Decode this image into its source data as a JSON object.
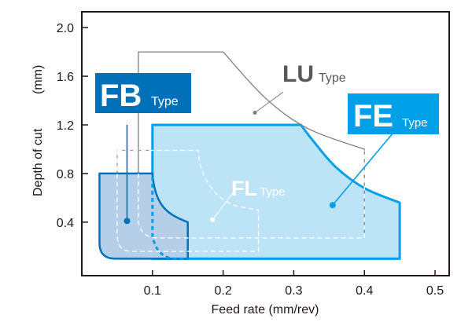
{
  "chart_data": {
    "type": "area",
    "title": "",
    "xlabel": "Feed rate (mm/rev)",
    "ylabel": "Depth of cut",
    "ylabel_unit": "(mm)",
    "xlim": [
      0,
      0.52
    ],
    "ylim": [
      -0.04,
      2.13
    ],
    "grid": false,
    "x_ticks": [
      0.1,
      0.2,
      0.3,
      0.4,
      0.5
    ],
    "x_tick_labels": [
      "0.1",
      "0.2",
      "0.3",
      "0.4",
      "0.5"
    ],
    "y_ticks": [
      0.4,
      0.8,
      1.2,
      1.6,
      2.0
    ],
    "y_tick_labels": [
      "0.4",
      "0.8",
      "1.2",
      "1.6",
      "2.0"
    ],
    "series": [
      {
        "name": "LU",
        "suffix": "Type",
        "style": "gray-outline",
        "color": "#808080",
        "boundary": [
          [
            0.05,
            0.8
          ],
          [
            0.05,
            0.99
          ],
          [
            0.08,
            0.99
          ],
          [
            0.08,
            1.8
          ],
          [
            0.2,
            1.8
          ],
          [
            0.26,
            1.42
          ],
          [
            0.32,
            1.17
          ],
          [
            0.4,
            1.0
          ],
          [
            0.4,
            0.3
          ]
        ],
        "marker": [
          0.245,
          1.3
        ]
      },
      {
        "name": "FE",
        "suffix": "Type",
        "style": "filled",
        "color": "#00a0e9",
        "fill": "#bde3f7",
        "boundary": [
          [
            0.1,
            0.1
          ],
          [
            0.1,
            1.2
          ],
          [
            0.31,
            1.2
          ],
          [
            0.33,
            1.05
          ],
          [
            0.36,
            0.85
          ],
          [
            0.4,
            0.68
          ],
          [
            0.45,
            0.56
          ],
          [
            0.45,
            0.1
          ]
        ],
        "marker": [
          0.355,
          0.54
        ]
      },
      {
        "name": "FB",
        "suffix": "Type",
        "style": "filled",
        "color": "#0071b8",
        "fill": "#b5cfe8",
        "boundary": [
          [
            0.025,
            0.8
          ],
          [
            0.1,
            0.8
          ],
          [
            0.115,
            0.58
          ],
          [
            0.15,
            0.4
          ],
          [
            0.15,
            0.1
          ],
          [
            0.045,
            0.1
          ],
          [
            0.025,
            0.2
          ]
        ],
        "marker": [
          0.064,
          0.41
        ]
      },
      {
        "name": "FL",
        "suffix": "Type",
        "style": "white-dashed",
        "color": "#ffffff",
        "boundary": [
          [
            0.05,
            0.99
          ],
          [
            0.05,
            0.18
          ],
          [
            0.06,
            0.16
          ],
          [
            0.08,
            0.16
          ],
          [
            0.25,
            0.16
          ],
          [
            0.25,
            0.51
          ],
          [
            0.22,
            0.53
          ],
          [
            0.19,
            0.65
          ],
          [
            0.17,
            0.99
          ],
          [
            0.1,
            0.99
          ]
        ],
        "marker": [
          0.185,
          0.42
        ]
      }
    ]
  },
  "labels": {
    "fb": {
      "big": "FB",
      "small": "Type",
      "bg": "#0071b8"
    },
    "fe": {
      "big": "FE",
      "small": "Type",
      "bg": "#00a0e9"
    },
    "lu": {
      "big": "LU",
      "small": "Type",
      "color": "#595757"
    },
    "fl": {
      "big": "FL",
      "small": "Type",
      "color": "#ffffff"
    }
  }
}
